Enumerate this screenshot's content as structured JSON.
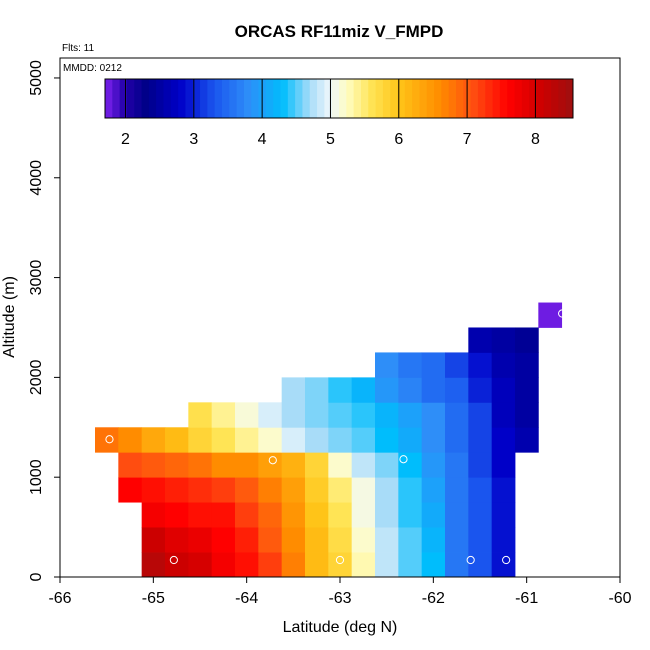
{
  "chart_data": {
    "type": "heatmap",
    "title": "ORCAS RF11miz V_FMPD",
    "xlabel": "Latitude (deg N)",
    "ylabel": "Altitude (m)",
    "xlim": [
      -66,
      -60
    ],
    "ylim": [
      0,
      5200
    ],
    "x_ticks": [
      -66,
      -65,
      -64,
      -63,
      -62,
      -61,
      -60
    ],
    "x_tick_labels": [
      "-66",
      "-65",
      "-64",
      "-63",
      "-62",
      "-61",
      "-60"
    ],
    "y_ticks": [
      0,
      1000,
      2000,
      3000,
      4000,
      5000
    ],
    "y_tick_labels": [
      "0",
      "1000",
      "2000",
      "3000",
      "4000",
      "5000"
    ],
    "notes": {
      "flights": "Flts: 11",
      "mmdd": "MMDD: 0212"
    },
    "colorbar": {
      "min": 1.7,
      "max": 8.55,
      "ticks": [
        2,
        3,
        4,
        5,
        6,
        7,
        8
      ],
      "tick_labels": [
        "2",
        "3",
        "4",
        "5",
        "6",
        "7",
        "8"
      ],
      "color_stops": [
        [
          1.7,
          "#7d22ee"
        ],
        [
          2.0,
          "#2200a8"
        ],
        [
          2.3,
          "#000088"
        ],
        [
          2.8,
          "#0000c8"
        ],
        [
          3.3,
          "#1a55ee"
        ],
        [
          3.8,
          "#2e8ef8"
        ],
        [
          4.3,
          "#00bdfc"
        ],
        [
          4.7,
          "#a8dcf8"
        ],
        [
          5.0,
          "#eef7fb"
        ],
        [
          5.25,
          "#fffcc0"
        ],
        [
          5.6,
          "#ffe455"
        ],
        [
          6.0,
          "#ffc418"
        ],
        [
          6.6,
          "#ff8c00"
        ],
        [
          7.1,
          "#ff4d10"
        ],
        [
          7.6,
          "#ff0000"
        ],
        [
          8.1,
          "#cc0000"
        ],
        [
          8.55,
          "#9e1010"
        ]
      ]
    },
    "bin": {
      "lat_width": 0.25,
      "alt_height": 250
    },
    "cells": [
      {
        "lat": -65.0,
        "alt": 0,
        "v": 8.3
      },
      {
        "lat": -64.75,
        "alt": 0,
        "v": 8.1
      },
      {
        "lat": -64.5,
        "alt": 0,
        "v": 8.0
      },
      {
        "lat": -64.25,
        "alt": 0,
        "v": 7.7
      },
      {
        "lat": -64.0,
        "alt": 0,
        "v": 7.5
      },
      {
        "lat": -63.75,
        "alt": 0,
        "v": 7.2
      },
      {
        "lat": -63.5,
        "alt": 0,
        "v": 6.7
      },
      {
        "lat": -63.25,
        "alt": 0,
        "v": 6.1
      },
      {
        "lat": -63.0,
        "alt": 0,
        "v": 5.8
      },
      {
        "lat": -62.75,
        "alt": 0,
        "v": 5.3
      },
      {
        "lat": -62.5,
        "alt": 0,
        "v": 4.8
      },
      {
        "lat": -62.25,
        "alt": 0,
        "v": 4.5
      },
      {
        "lat": -62.0,
        "alt": 0,
        "v": 4.3
      },
      {
        "lat": -61.75,
        "alt": 0,
        "v": 3.6
      },
      {
        "lat": -61.5,
        "alt": 0,
        "v": 3.3
      },
      {
        "lat": -61.25,
        "alt": 0,
        "v": 2.9
      },
      {
        "lat": -65.0,
        "alt": 250,
        "v": 8.1
      },
      {
        "lat": -64.75,
        "alt": 250,
        "v": 7.9
      },
      {
        "lat": -64.5,
        "alt": 250,
        "v": 7.8
      },
      {
        "lat": -64.25,
        "alt": 250,
        "v": 7.6
      },
      {
        "lat": -64.0,
        "alt": 250,
        "v": 7.4
      },
      {
        "lat": -63.75,
        "alt": 250,
        "v": 7.0
      },
      {
        "lat": -63.5,
        "alt": 250,
        "v": 6.6
      },
      {
        "lat": -63.25,
        "alt": 250,
        "v": 6.1
      },
      {
        "lat": -63.0,
        "alt": 250,
        "v": 5.7
      },
      {
        "lat": -62.75,
        "alt": 250,
        "v": 5.2
      },
      {
        "lat": -62.5,
        "alt": 250,
        "v": 4.8
      },
      {
        "lat": -62.25,
        "alt": 250,
        "v": 4.5
      },
      {
        "lat": -62.0,
        "alt": 250,
        "v": 4.2
      },
      {
        "lat": -61.75,
        "alt": 250,
        "v": 3.6
      },
      {
        "lat": -61.5,
        "alt": 250,
        "v": 3.3
      },
      {
        "lat": -61.25,
        "alt": 250,
        "v": 2.9
      },
      {
        "lat": -65.0,
        "alt": 500,
        "v": 7.7
      },
      {
        "lat": -64.75,
        "alt": 500,
        "v": 7.6
      },
      {
        "lat": -64.5,
        "alt": 500,
        "v": 7.5
      },
      {
        "lat": -64.25,
        "alt": 500,
        "v": 7.5
      },
      {
        "lat": -64.0,
        "alt": 500,
        "v": 7.2
      },
      {
        "lat": -63.75,
        "alt": 500,
        "v": 6.9
      },
      {
        "lat": -63.5,
        "alt": 500,
        "v": 6.5
      },
      {
        "lat": -63.25,
        "alt": 500,
        "v": 6.0
      },
      {
        "lat": -63.0,
        "alt": 500,
        "v": 5.6
      },
      {
        "lat": -62.75,
        "alt": 500,
        "v": 5.1
      },
      {
        "lat": -62.5,
        "alt": 500,
        "v": 4.7
      },
      {
        "lat": -62.25,
        "alt": 500,
        "v": 4.4
      },
      {
        "lat": -62.0,
        "alt": 500,
        "v": 4.1
      },
      {
        "lat": -61.75,
        "alt": 500,
        "v": 3.6
      },
      {
        "lat": -61.5,
        "alt": 500,
        "v": 3.3
      },
      {
        "lat": -61.25,
        "alt": 500,
        "v": 2.9
      },
      {
        "lat": -65.25,
        "alt": 750,
        "v": 7.6
      },
      {
        "lat": -65.0,
        "alt": 750,
        "v": 7.5
      },
      {
        "lat": -64.75,
        "alt": 750,
        "v": 7.4
      },
      {
        "lat": -64.5,
        "alt": 750,
        "v": 7.3
      },
      {
        "lat": -64.25,
        "alt": 750,
        "v": 7.2
      },
      {
        "lat": -64.0,
        "alt": 750,
        "v": 7.0
      },
      {
        "lat": -63.75,
        "alt": 750,
        "v": 6.7
      },
      {
        "lat": -63.5,
        "alt": 750,
        "v": 6.4
      },
      {
        "lat": -63.25,
        "alt": 750,
        "v": 5.9
      },
      {
        "lat": -63.0,
        "alt": 750,
        "v": 5.5
      },
      {
        "lat": -62.75,
        "alt": 750,
        "v": 5.1
      },
      {
        "lat": -62.5,
        "alt": 750,
        "v": 4.7
      },
      {
        "lat": -62.25,
        "alt": 750,
        "v": 4.4
      },
      {
        "lat": -62.0,
        "alt": 750,
        "v": 4.0
      },
      {
        "lat": -61.75,
        "alt": 750,
        "v": 3.6
      },
      {
        "lat": -61.5,
        "alt": 750,
        "v": 3.3
      },
      {
        "lat": -61.25,
        "alt": 750,
        "v": 2.9
      },
      {
        "lat": -65.25,
        "alt": 1000,
        "v": 7.1
      },
      {
        "lat": -65.0,
        "alt": 1000,
        "v": 7.0
      },
      {
        "lat": -64.75,
        "alt": 1000,
        "v": 6.9
      },
      {
        "lat": -64.5,
        "alt": 1000,
        "v": 6.8
      },
      {
        "lat": -64.25,
        "alt": 1000,
        "v": 6.6
      },
      {
        "lat": -64.0,
        "alt": 1000,
        "v": 6.6
      },
      {
        "lat": -63.75,
        "alt": 1000,
        "v": 6.4
      },
      {
        "lat": -63.5,
        "alt": 1000,
        "v": 6.2
      },
      {
        "lat": -63.25,
        "alt": 1000,
        "v": 5.8
      },
      {
        "lat": -63.0,
        "alt": 1000,
        "v": 5.2
      },
      {
        "lat": -62.75,
        "alt": 1000,
        "v": 4.8
      },
      {
        "lat": -62.5,
        "alt": 1000,
        "v": 4.6
      },
      {
        "lat": -62.25,
        "alt": 1000,
        "v": 4.3
      },
      {
        "lat": -62.0,
        "alt": 1000,
        "v": 3.9
      },
      {
        "lat": -61.75,
        "alt": 1000,
        "v": 3.6
      },
      {
        "lat": -61.5,
        "alt": 1000,
        "v": 3.2
      },
      {
        "lat": -61.25,
        "alt": 1000,
        "v": 2.8
      },
      {
        "lat": -65.5,
        "alt": 1250,
        "v": 6.8
      },
      {
        "lat": -65.25,
        "alt": 1250,
        "v": 6.6
      },
      {
        "lat": -65.0,
        "alt": 1250,
        "v": 6.3
      },
      {
        "lat": -64.75,
        "alt": 1250,
        "v": 6.1
      },
      {
        "lat": -64.5,
        "alt": 1250,
        "v": 5.8
      },
      {
        "lat": -64.25,
        "alt": 1250,
        "v": 5.6
      },
      {
        "lat": -64.0,
        "alt": 1250,
        "v": 5.4
      },
      {
        "lat": -63.75,
        "alt": 1250,
        "v": 5.2
      },
      {
        "lat": -63.5,
        "alt": 1250,
        "v": 4.9
      },
      {
        "lat": -63.25,
        "alt": 1250,
        "v": 4.7
      },
      {
        "lat": -63.0,
        "alt": 1250,
        "v": 4.6
      },
      {
        "lat": -62.75,
        "alt": 1250,
        "v": 4.5
      },
      {
        "lat": -62.5,
        "alt": 1250,
        "v": 4.3
      },
      {
        "lat": -62.25,
        "alt": 1250,
        "v": 4.1
      },
      {
        "lat": -62.0,
        "alt": 1250,
        "v": 3.8
      },
      {
        "lat": -61.75,
        "alt": 1250,
        "v": 3.5
      },
      {
        "lat": -61.5,
        "alt": 1250,
        "v": 3.2
      },
      {
        "lat": -61.25,
        "alt": 1250,
        "v": 2.8
      },
      {
        "lat": -61.0,
        "alt": 1250,
        "v": 2.6
      },
      {
        "lat": -64.5,
        "alt": 1500,
        "v": 5.65
      },
      {
        "lat": -64.25,
        "alt": 1500,
        "v": 5.4
      },
      {
        "lat": -64.0,
        "alt": 1500,
        "v": 5.15
      },
      {
        "lat": -63.75,
        "alt": 1500,
        "v": 4.9
      },
      {
        "lat": -63.5,
        "alt": 1500,
        "v": 4.7
      },
      {
        "lat": -63.25,
        "alt": 1500,
        "v": 4.6
      },
      {
        "lat": -63.0,
        "alt": 1500,
        "v": 4.5
      },
      {
        "lat": -62.75,
        "alt": 1500,
        "v": 4.4
      },
      {
        "lat": -62.5,
        "alt": 1500,
        "v": 4.2
      },
      {
        "lat": -62.25,
        "alt": 1500,
        "v": 4.0
      },
      {
        "lat": -62.0,
        "alt": 1500,
        "v": 3.8
      },
      {
        "lat": -61.75,
        "alt": 1500,
        "v": 3.5
      },
      {
        "lat": -61.5,
        "alt": 1500,
        "v": 3.2
      },
      {
        "lat": -61.25,
        "alt": 1500,
        "v": 2.7
      },
      {
        "lat": -61.0,
        "alt": 1500,
        "v": 2.5
      },
      {
        "lat": -63.5,
        "alt": 1750,
        "v": 4.7
      },
      {
        "lat": -63.25,
        "alt": 1750,
        "v": 4.6
      },
      {
        "lat": -63.0,
        "alt": 1750,
        "v": 4.4
      },
      {
        "lat": -62.75,
        "alt": 1750,
        "v": 4.2
      },
      {
        "lat": -62.5,
        "alt": 1750,
        "v": 3.9
      },
      {
        "lat": -62.25,
        "alt": 1750,
        "v": 3.7
      },
      {
        "lat": -62.0,
        "alt": 1750,
        "v": 3.5
      },
      {
        "lat": -61.75,
        "alt": 1750,
        "v": 3.4
      },
      {
        "lat": -61.5,
        "alt": 1750,
        "v": 3.0
      },
      {
        "lat": -61.25,
        "alt": 1750,
        "v": 2.7
      },
      {
        "lat": -61.0,
        "alt": 1750,
        "v": 2.5
      },
      {
        "lat": -62.5,
        "alt": 2000,
        "v": 3.8
      },
      {
        "lat": -62.25,
        "alt": 2000,
        "v": 3.6
      },
      {
        "lat": -62.0,
        "alt": 2000,
        "v": 3.5
      },
      {
        "lat": -61.75,
        "alt": 2000,
        "v": 3.2
      },
      {
        "lat": -61.5,
        "alt": 2000,
        "v": 2.9
      },
      {
        "lat": -61.25,
        "alt": 2000,
        "v": 2.6
      },
      {
        "lat": -61.0,
        "alt": 2000,
        "v": 2.5
      },
      {
        "lat": -61.5,
        "alt": 2250,
        "v": 2.6
      },
      {
        "lat": -61.25,
        "alt": 2250,
        "v": 2.5
      },
      {
        "lat": -61.0,
        "alt": 2250,
        "v": 2.4
      },
      {
        "lat": -60.75,
        "alt": 2500,
        "v": 1.75
      }
    ],
    "markers": [
      {
        "lat": -64.78,
        "alt": 170
      },
      {
        "lat": -63.0,
        "alt": 170
      },
      {
        "lat": -61.6,
        "alt": 170
      },
      {
        "lat": -61.22,
        "alt": 170
      },
      {
        "lat": -63.72,
        "alt": 1170
      },
      {
        "lat": -62.32,
        "alt": 1180
      },
      {
        "lat": -65.47,
        "alt": 1380
      },
      {
        "lat": -60.62,
        "alt": 2640
      }
    ]
  }
}
